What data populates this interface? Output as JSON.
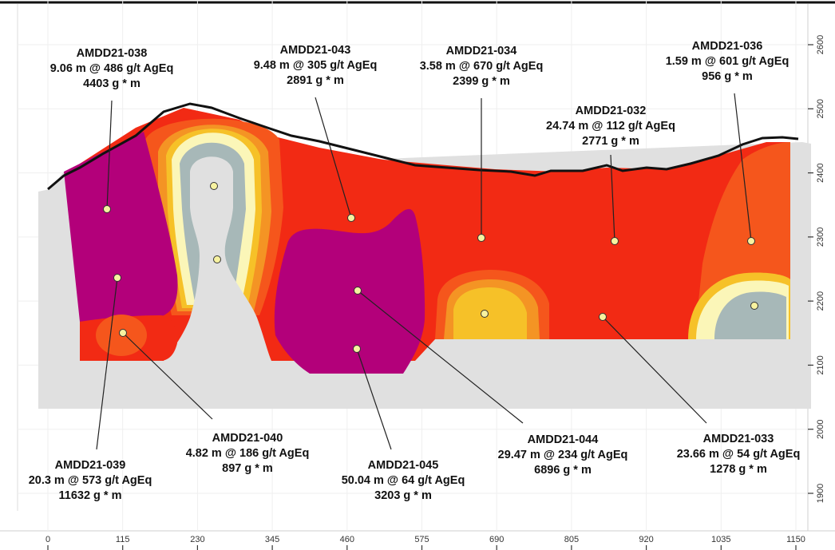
{
  "colors": {
    "high_magenta": "#b3007a",
    "red": "#f22a14",
    "orange_red": "#f5561c",
    "orange": "#f49424",
    "yellow_orange": "#f6c128",
    "pale_yellow": "#fbf6b8",
    "grey_blue": "#a7b8b8",
    "background_grey": "#e0e0e0"
  },
  "x_axis": {
    "ticks": [
      "0",
      "115",
      "230",
      "345",
      "460",
      "575",
      "690",
      "805",
      "920",
      "1035",
      "1150"
    ]
  },
  "y_axis": {
    "ticks": [
      "1900",
      "2000",
      "2100",
      "2200",
      "2300",
      "2400",
      "2500",
      "2600"
    ]
  },
  "callouts": [
    {
      "hole": "AMDD21-038",
      "interval": "9.06 m @ 486 g/t AgEq",
      "gram_metres": "4403 g * m"
    },
    {
      "hole": "AMDD21-043",
      "interval": "9.48 m @ 305 g/t AgEq",
      "gram_metres": "2891 g * m"
    },
    {
      "hole": "AMDD21-034",
      "interval": "3.58 m @ 670 g/t AgEq",
      "gram_metres": "2399 g * m"
    },
    {
      "hole": "AMDD21-036",
      "interval": "1.59 m @ 601 g/t AgEq",
      "gram_metres": "956 g * m"
    },
    {
      "hole": "AMDD21-032",
      "interval": "24.74 m @ 112 g/t AgEq",
      "gram_metres": "2771 g * m"
    },
    {
      "hole": "AMDD21-040",
      "interval": "4.82 m @ 186 g/t AgEq",
      "gram_metres": "897 g * m"
    },
    {
      "hole": "AMDD21-039",
      "interval": "20.3 m @ 573 g/t AgEq",
      "gram_metres": "11632 g * m"
    },
    {
      "hole": "AMDD21-045",
      "interval": "50.04 m @ 64 g/t AgEq",
      "gram_metres": "3203 g * m"
    },
    {
      "hole": "AMDD21-044",
      "interval": "29.47 m @ 234 g/t AgEq",
      "gram_metres": "6896 g * m"
    },
    {
      "hole": "AMDD21-033",
      "interval": "23.66 m @ 54 g/t AgEq",
      "gram_metres": "1278 g * m"
    }
  ]
}
